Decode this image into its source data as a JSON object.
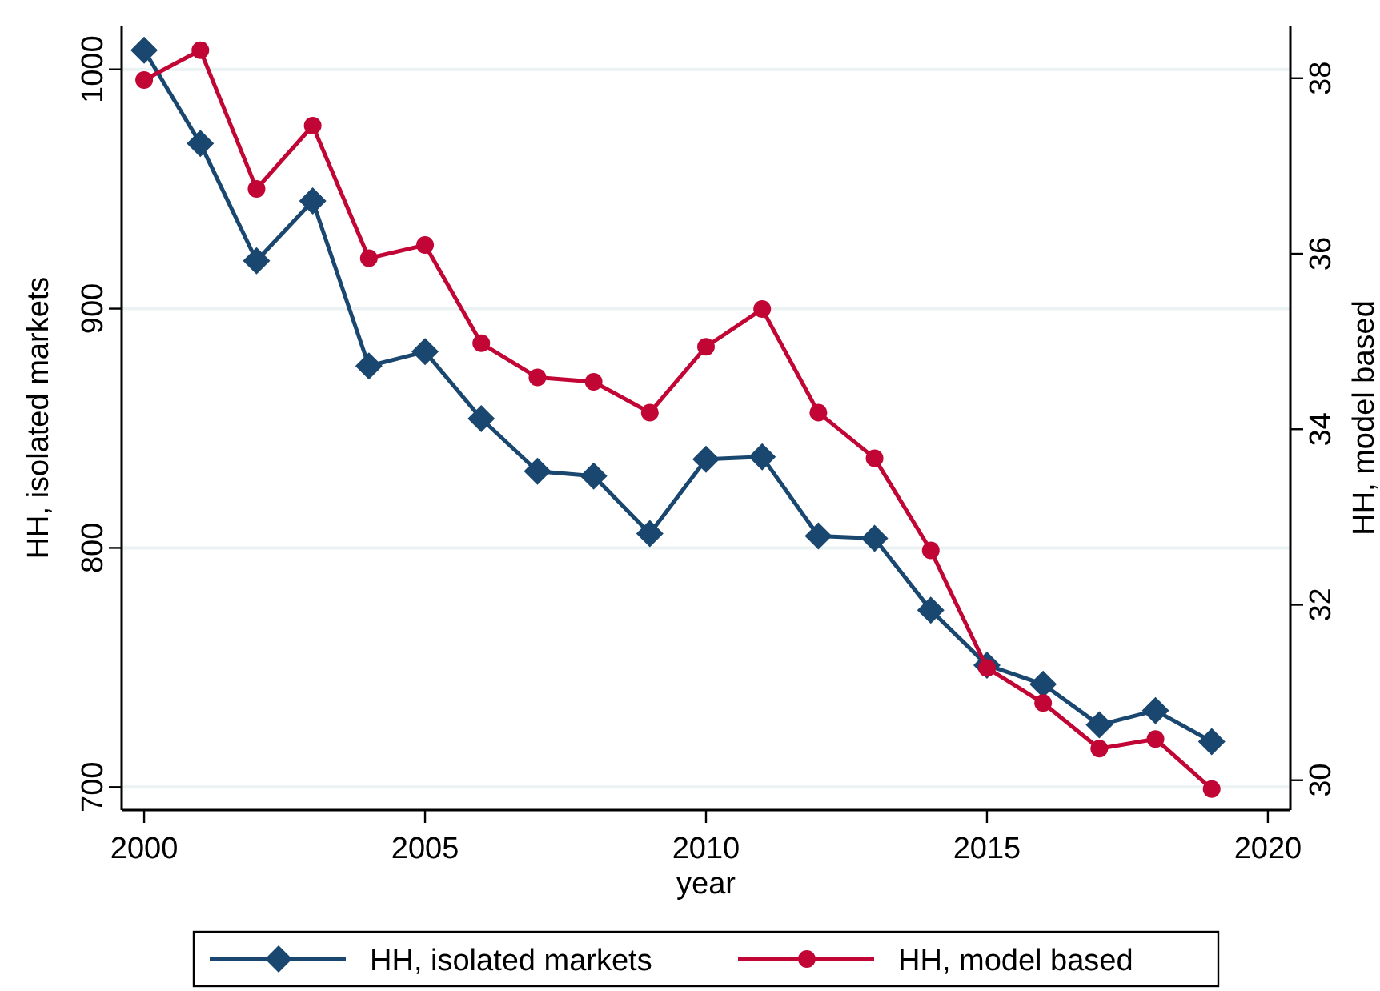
{
  "chart_data": {
    "type": "line",
    "xlabel": "year",
    "ylabel": "HH, isolated markets",
    "y2label": "HH, model based",
    "x": [
      2000,
      2001,
      2002,
      2003,
      2004,
      2005,
      2006,
      2007,
      2008,
      2009,
      2010,
      2011,
      2012,
      2013,
      2014,
      2015,
      2016,
      2017,
      2018,
      2019
    ],
    "xlim": [
      1999.6,
      2020.4
    ],
    "xticks": [
      2000,
      2005,
      2010,
      2015,
      2020
    ],
    "ylim": [
      690.4,
      1018.3
    ],
    "yticks": [
      700,
      800,
      900,
      1000
    ],
    "y2lim": [
      29.66,
      38.6
    ],
    "y2ticks": [
      30,
      32,
      34,
      36,
      38
    ],
    "grid": "y",
    "legend": "bottom",
    "line_style": "solid",
    "series": [
      {
        "name": "HH, isolated markets",
        "color": "#1a476f",
        "marker": "diamond",
        "values": [
          1008,
          969,
          920,
          945,
          876,
          882,
          854,
          832,
          830,
          806,
          837,
          838,
          805,
          804,
          774,
          751,
          743,
          726,
          732,
          719
        ]
      },
      {
        "name": "HH, model based",
        "color": "#c10534",
        "marker": "circle",
        "axis": "y2",
        "values": [
          37.98,
          38.32,
          36.74,
          37.46,
          35.95,
          36.1,
          34.98,
          34.59,
          34.54,
          34.19,
          34.94,
          35.37,
          34.19,
          33.67,
          32.62,
          31.28,
          30.88,
          30.36,
          30.47,
          29.9
        ]
      }
    ]
  }
}
